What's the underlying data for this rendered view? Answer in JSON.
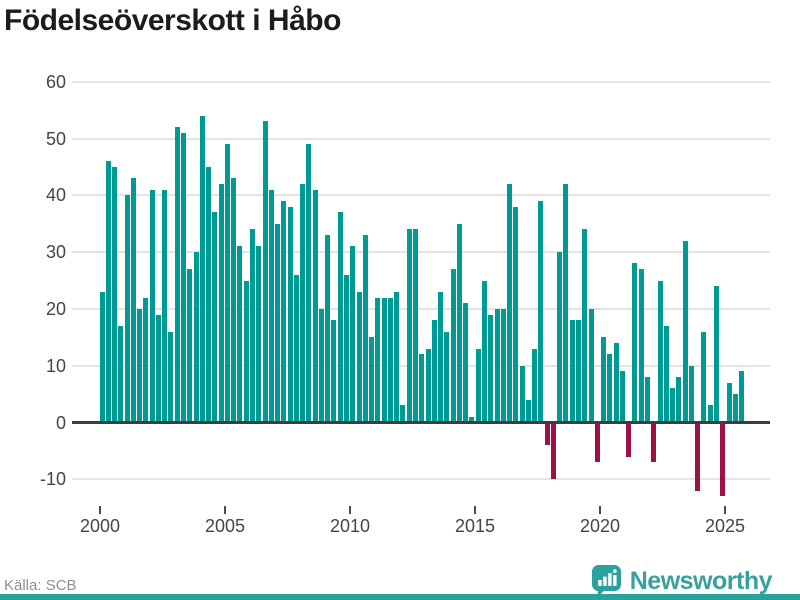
{
  "title": "Födelseöverskott i Håbo",
  "footer": {
    "source": "Källa: SCB",
    "brand": "Newsworthy"
  },
  "chart_data": {
    "type": "bar",
    "title": "Födelseöverskott i Håbo",
    "frequency": "quarterly",
    "start_period": "2000Q1",
    "end_period": "2025Q3",
    "xlabel": "",
    "ylabel": "",
    "xticks": [
      2000,
      2005,
      2010,
      2015,
      2020,
      2025
    ],
    "yticks": [
      -10,
      0,
      10,
      20,
      30,
      40,
      50,
      60
    ],
    "ylim": [
      -14,
      62
    ],
    "grid": true,
    "legend": "none",
    "colors": {
      "positive": "#009a94",
      "negative": "#9e1146"
    },
    "values": [
      23,
      46,
      45,
      17,
      40,
      43,
      20,
      22,
      41,
      19,
      41,
      16,
      52,
      51,
      27,
      30,
      54,
      45,
      37,
      42,
      49,
      43,
      31,
      25,
      34,
      31,
      53,
      41,
      35,
      39,
      38,
      26,
      42,
      49,
      41,
      20,
      33,
      18,
      37,
      26,
      31,
      23,
      33,
      15,
      22,
      22,
      22,
      23,
      3,
      34,
      34,
      12,
      13,
      18,
      23,
      16,
      27,
      35,
      21,
      1,
      13,
      25,
      19,
      20,
      20,
      42,
      38,
      10,
      4,
      13,
      39,
      -4,
      -10,
      30,
      42,
      18,
      18,
      34,
      20,
      -7,
      15,
      12,
      14,
      9,
      -6,
      28,
      27,
      8,
      -7,
      25,
      17,
      6,
      8,
      32,
      10,
      -12,
      16,
      3,
      24,
      -13,
      7,
      5,
      9
    ]
  }
}
